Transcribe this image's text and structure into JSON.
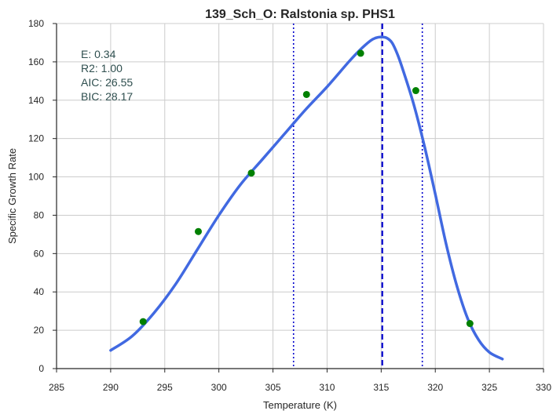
{
  "chart_data": {
    "type": "line",
    "title": "139_Sch_O: Ralstonia sp. PHS1",
    "xlabel": "Temperature (K)",
    "ylabel": "Specific Growth Rate",
    "xlim": [
      285,
      330
    ],
    "ylim": [
      0,
      180
    ],
    "xticks": [
      285,
      290,
      295,
      300,
      305,
      310,
      315,
      320,
      325,
      330
    ],
    "yticks": [
      0,
      20,
      40,
      60,
      80,
      100,
      120,
      140,
      160,
      180
    ],
    "grid": true,
    "stats_text": [
      "E:  0.34",
      "R2:  1.00",
      "AIC: 26.55",
      "BIC: 28.17"
    ],
    "series": [
      {
        "kind": "fitted-curve",
        "color": "#4169e1",
        "x": [
          290,
          292,
          294,
          296,
          298,
          300,
          302,
          304,
          306,
          308,
          310,
          312,
          313,
          314,
          314.5,
          315,
          315.5,
          316,
          316.5,
          317,
          318,
          319,
          320,
          321,
          322,
          323,
          324,
          325,
          326.2
        ],
        "y": [
          9.5,
          17,
          29,
          44,
          62,
          80,
          96,
          109,
          122,
          135,
          147,
          160,
          166,
          171,
          172.5,
          173,
          172.5,
          170,
          164,
          156,
          138,
          116,
          91,
          65,
          43,
          26,
          15,
          8.5,
          5
        ]
      },
      {
        "kind": "observed-points",
        "color": "#008000",
        "x": [
          293.0,
          298.1,
          303.0,
          308.1,
          313.1,
          318.2,
          323.2
        ],
        "y": [
          24.5,
          71.5,
          102.0,
          143.0,
          164.5,
          145.0,
          23.5
        ]
      }
    ],
    "vlines": [
      {
        "x": 315.1,
        "style": "dashed",
        "color": "#0000cd"
      },
      {
        "x": 306.9,
        "style": "dotted",
        "color": "#0000cd"
      },
      {
        "x": 318.8,
        "style": "dotted",
        "color": "#0000cd"
      }
    ]
  }
}
